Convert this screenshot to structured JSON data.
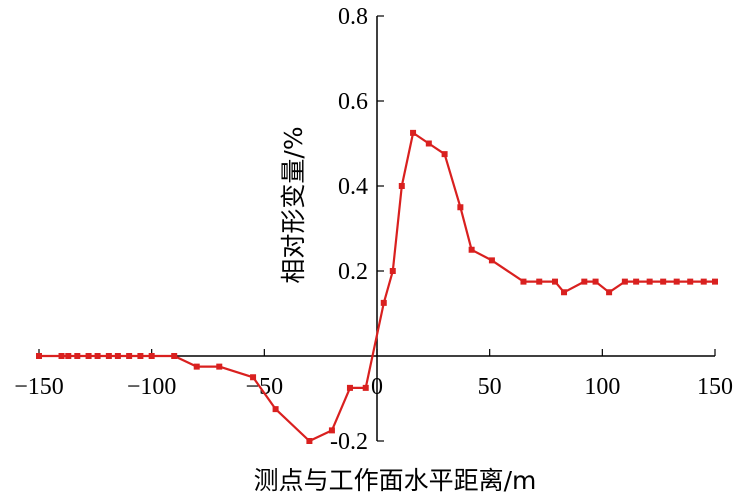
{
  "chart_data": {
    "type": "line",
    "xlabel": "测点与工作面水平距离/m",
    "ylabel": "相对形变量/%",
    "xlim": [
      -150,
      150
    ],
    "ylim": [
      -0.2,
      0.8
    ],
    "xticks": [
      -150,
      -100,
      -50,
      0,
      50,
      100,
      150
    ],
    "xtick_labels": [
      "−150",
      "−100",
      "−50",
      "0",
      "50",
      "100",
      "150"
    ],
    "yticks": [
      -0.2,
      0.2,
      0.4,
      0.6,
      0.8
    ],
    "ytick_labels": [
      "-0.2",
      "0.2",
      "0.4",
      "0.6",
      "0.8"
    ],
    "grid": false,
    "series": [
      {
        "color": "#d9201f",
        "x": [
          -150,
          -140,
          -137,
          -133,
          -128,
          -124,
          -119,
          -115,
          -110,
          -105,
          -100,
          -90,
          -80,
          -70,
          -55,
          -45,
          -30,
          -20,
          -12,
          -5,
          3,
          7,
          11,
          16,
          23,
          30,
          37,
          42,
          51,
          65,
          72,
          79,
          83,
          92,
          97,
          103,
          110,
          115,
          121,
          127,
          133,
          139,
          145,
          150
        ],
        "y": [
          0,
          0,
          0,
          0,
          0,
          0,
          0,
          0,
          0,
          0,
          0,
          0,
          -0.025,
          -0.025,
          -0.05,
          -0.125,
          -0.2,
          -0.175,
          -0.075,
          -0.075,
          0.125,
          0.2,
          0.4,
          0.525,
          0.5,
          0.475,
          0.35,
          0.25,
          0.225,
          0.175,
          0.175,
          0.175,
          0.15,
          0.175,
          0.175,
          0.15,
          0.175,
          0.175,
          0.175,
          0.175,
          0.175,
          0.175,
          0.175,
          0.175
        ]
      }
    ]
  }
}
